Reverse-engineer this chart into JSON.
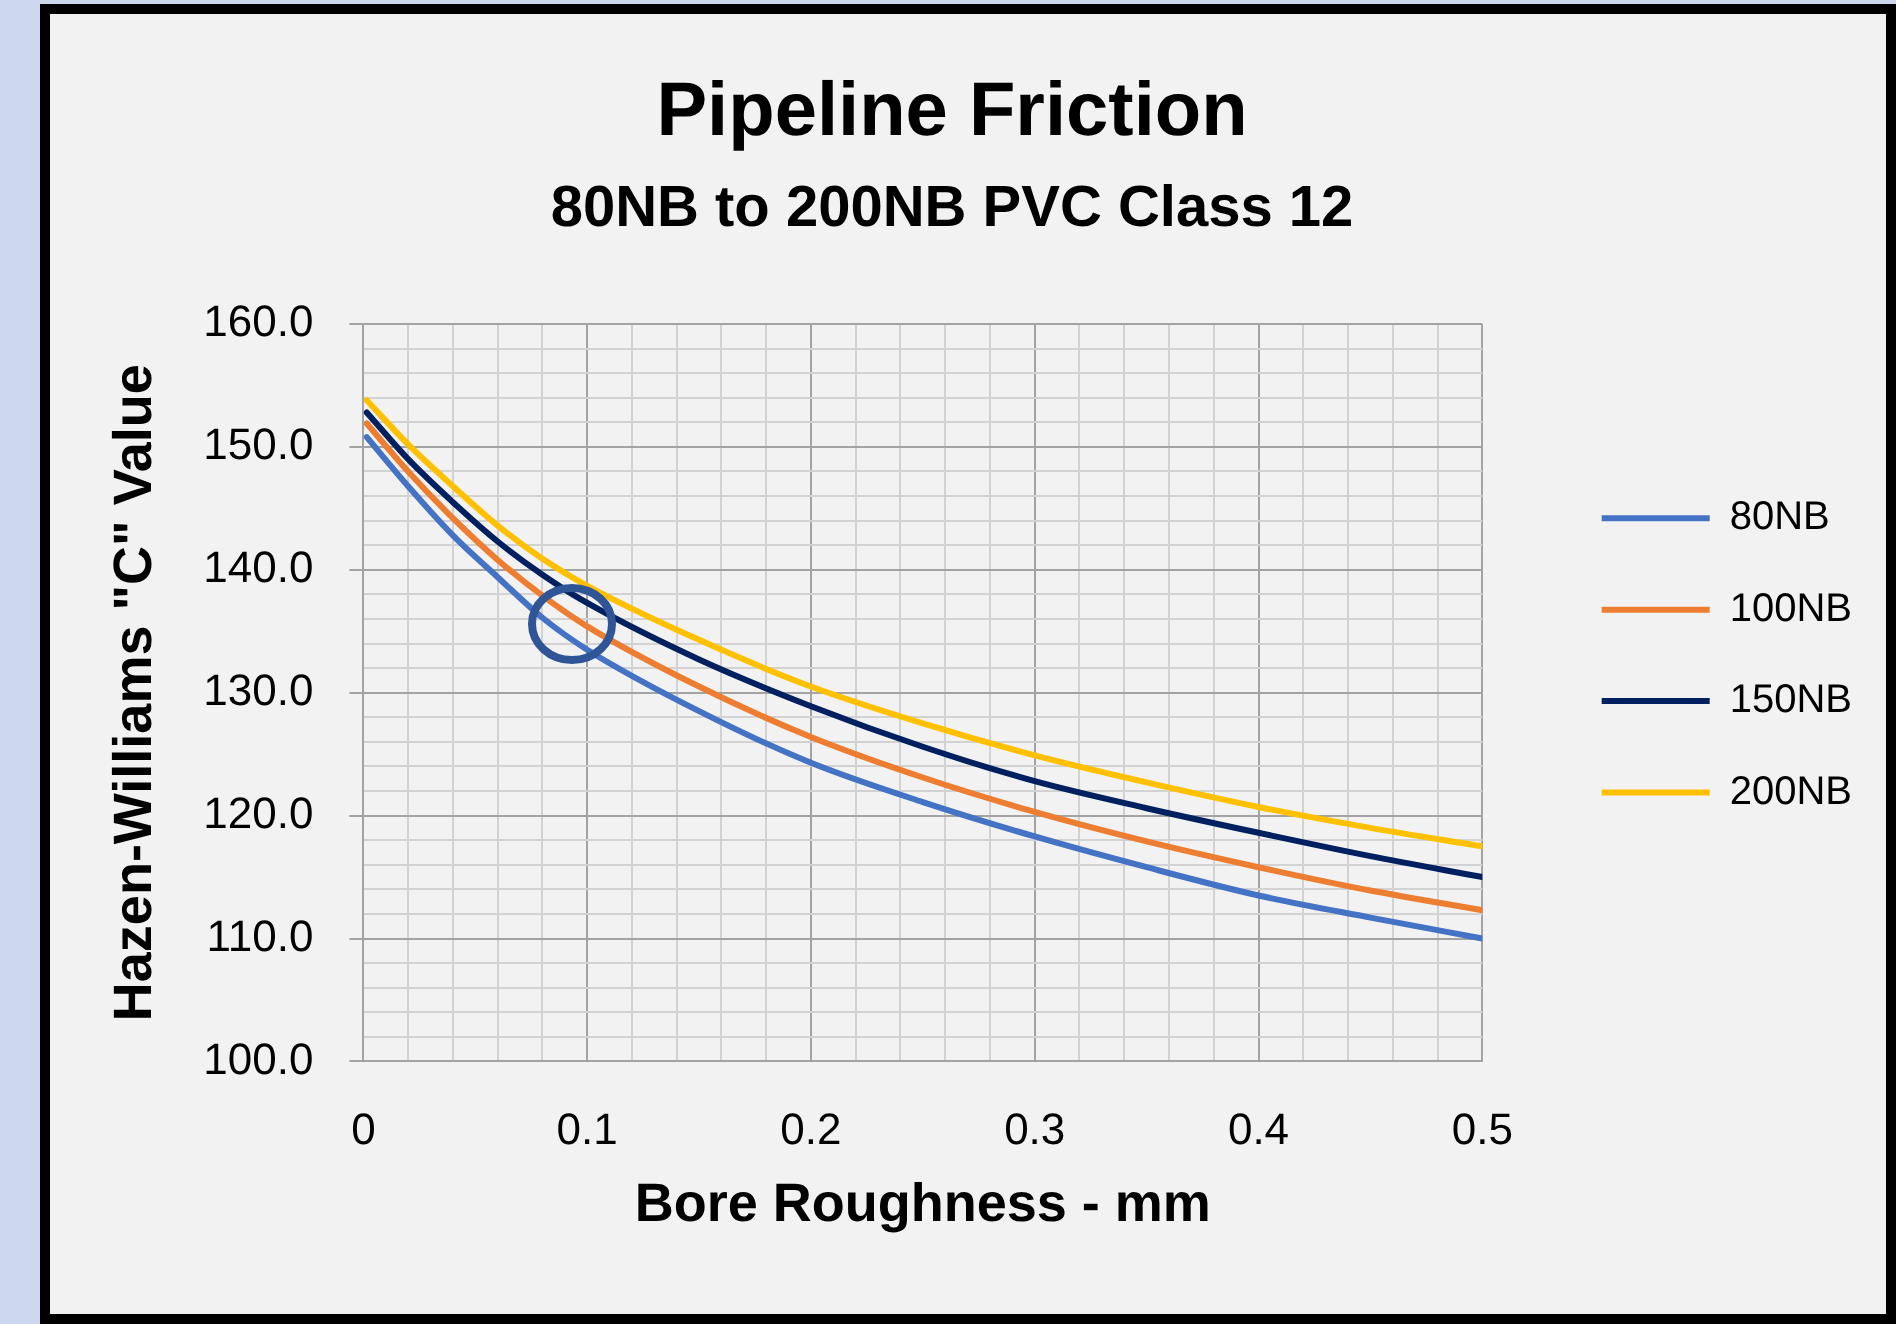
{
  "chart_data": {
    "type": "line",
    "title": "Pipeline Friction",
    "subtitle": "80NB to 200NB PVC Class 12",
    "xlabel": "Bore Roughness - mm",
    "ylabel": "Hazen-Williams \"C\" Value",
    "x": [
      0.0015,
      0.02,
      0.04,
      0.06,
      0.08,
      0.1,
      0.15,
      0.2,
      0.25,
      0.3,
      0.35,
      0.4,
      0.45,
      0.5
    ],
    "series": [
      {
        "name": "80NB",
        "color": "#4472c4",
        "values": [
          150.8,
          146.8,
          142.8,
          139.4,
          136.1,
          133.5,
          128.5,
          124.3,
          121.1,
          118.3,
          115.8,
          113.5,
          111.7,
          110.0
        ]
      },
      {
        "name": "100NB",
        "color": "#ed7d31",
        "values": [
          151.9,
          148.0,
          144.2,
          140.8,
          137.9,
          135.4,
          130.5,
          126.4,
          123.1,
          120.3,
          117.9,
          115.8,
          113.9,
          112.3
        ]
      },
      {
        "name": "150NB",
        "color": "#002060",
        "values": [
          152.8,
          149.0,
          145.5,
          142.3,
          139.6,
          137.3,
          132.7,
          128.9,
          125.6,
          122.8,
          120.6,
          118.6,
          116.7,
          115.0
        ]
      },
      {
        "name": "200NB",
        "color": "#ffc000",
        "values": [
          153.8,
          150.2,
          146.8,
          143.6,
          140.9,
          138.7,
          134.3,
          130.5,
          127.5,
          124.9,
          122.7,
          120.7,
          119.0,
          117.5
        ]
      }
    ],
    "xlim": [
      0,
      0.5
    ],
    "xticks": [
      0,
      {
        "value": 0.02,
        "label": null
      },
      {
        "value": 0.04,
        "label": null
      },
      {
        "value": 0.06,
        "label": null
      },
      {
        "value": 0.08,
        "label": null
      },
      0.1,
      {
        "value": 0.12,
        "label": null
      },
      {
        "value": 0.14,
        "label": null
      },
      {
        "value": 0.16,
        "label": null
      },
      {
        "value": 0.18,
        "label": null
      },
      0.2,
      {
        "value": 0.22,
        "label": null
      },
      {
        "value": 0.24,
        "label": null
      },
      {
        "value": 0.26,
        "label": null
      },
      {
        "value": 0.28,
        "label": null
      },
      0.3,
      {
        "value": 0.32,
        "label": null
      },
      {
        "value": 0.34,
        "label": null
      },
      {
        "value": 0.36,
        "label": null
      },
      {
        "value": 0.38,
        "label": null
      },
      0.4,
      {
        "value": 0.42,
        "label": null
      },
      {
        "value": 0.44,
        "label": null
      },
      {
        "value": 0.46,
        "label": null
      },
      {
        "value": 0.48,
        "label": null
      },
      0.5
    ],
    "ylim": [
      100,
      160
    ],
    "yticks": [
      {
        "value": 100,
        "label": "100.0"
      },
      {
        "value": 102,
        "label": null
      },
      {
        "value": 104,
        "label": null
      },
      {
        "value": 106,
        "label": null
      },
      {
        "value": 108,
        "label": null
      },
      {
        "value": 110,
        "label": "110.0"
      },
      {
        "value": 112,
        "label": null
      },
      {
        "value": 114,
        "label": null
      },
      {
        "value": 116,
        "label": null
      },
      {
        "value": 118,
        "label": null
      },
      {
        "value": 120,
        "label": "120.0"
      },
      {
        "value": 122,
        "label": null
      },
      {
        "value": 124,
        "label": null
      },
      {
        "value": 126,
        "label": null
      },
      {
        "value": 128,
        "label": null
      },
      {
        "value": 130,
        "label": "130.0"
      },
      {
        "value": 132,
        "label": null
      },
      {
        "value": 134,
        "label": null
      },
      {
        "value": 136,
        "label": null
      },
      {
        "value": 138,
        "label": null
      },
      {
        "value": 140,
        "label": "140.0"
      },
      {
        "value": 142,
        "label": null
      },
      {
        "value": 144,
        "label": null
      },
      {
        "value": 146,
        "label": null
      },
      {
        "value": 148,
        "label": null
      },
      {
        "value": 150,
        "label": "150.0"
      },
      {
        "value": 152,
        "label": null
      },
      {
        "value": 154,
        "label": null
      },
      {
        "value": 156,
        "label": null
      },
      {
        "value": 158,
        "label": null
      },
      {
        "value": 160,
        "label": "160.0"
      }
    ],
    "grid": true,
    "legend": "right",
    "marker": "none",
    "line_style": "solid"
  }
}
